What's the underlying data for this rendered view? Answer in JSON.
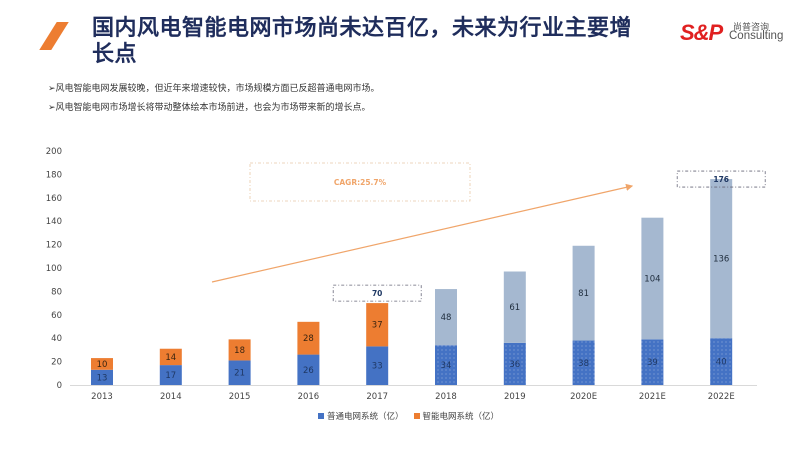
{
  "header": {
    "title": "国内风电智能电网市场尚未达百亿，未来为行业主要增长点",
    "logo": {
      "mark": "S&P",
      "cn": "尚普咨询",
      "en": "Consulting"
    }
  },
  "bullets": [
    "➢风电智能电网发展较晚，但近年来增速较快，市场规模方面已反超普通电网市场。",
    "➢风电智能电网市场增长将带动整体绘本市场前进，也会为市场带来新的增长点。"
  ],
  "colors": {
    "ordinary": "#4472c4",
    "smart": "#ed7d31",
    "forecast_top": "#a5b8d0",
    "title": "#1f2d5c",
    "accent": "#ed7d31"
  },
  "chart_data": {
    "type": "bar",
    "stacked": true,
    "title": "",
    "xlabel": "",
    "ylabel": "",
    "ylim": [
      0,
      200
    ],
    "yticks": [
      0,
      20,
      40,
      60,
      80,
      100,
      120,
      140,
      160,
      180,
      200
    ],
    "categories": [
      "2013",
      "2014",
      "2015",
      "2016",
      "2017",
      "2018",
      "2019",
      "2020E",
      "2021E",
      "2022E"
    ],
    "series": [
      {
        "name": "普通电网系统（亿）",
        "values": [
          13,
          17,
          21,
          26,
          33,
          34,
          36,
          38,
          39,
          40
        ]
      },
      {
        "name": "智能电网系统（亿）",
        "values": [
          10,
          14,
          18,
          28,
          37,
          48,
          61,
          81,
          104,
          136
        ]
      }
    ],
    "forecast_from_index": 5,
    "annotations": [
      {
        "text": "CAGR:25.7%",
        "type": "box"
      },
      {
        "text": "70",
        "type": "total-box",
        "category": "2017"
      },
      {
        "text": "176",
        "type": "total-box",
        "category": "2022E"
      }
    ],
    "grid": false,
    "legend": "bottom"
  }
}
